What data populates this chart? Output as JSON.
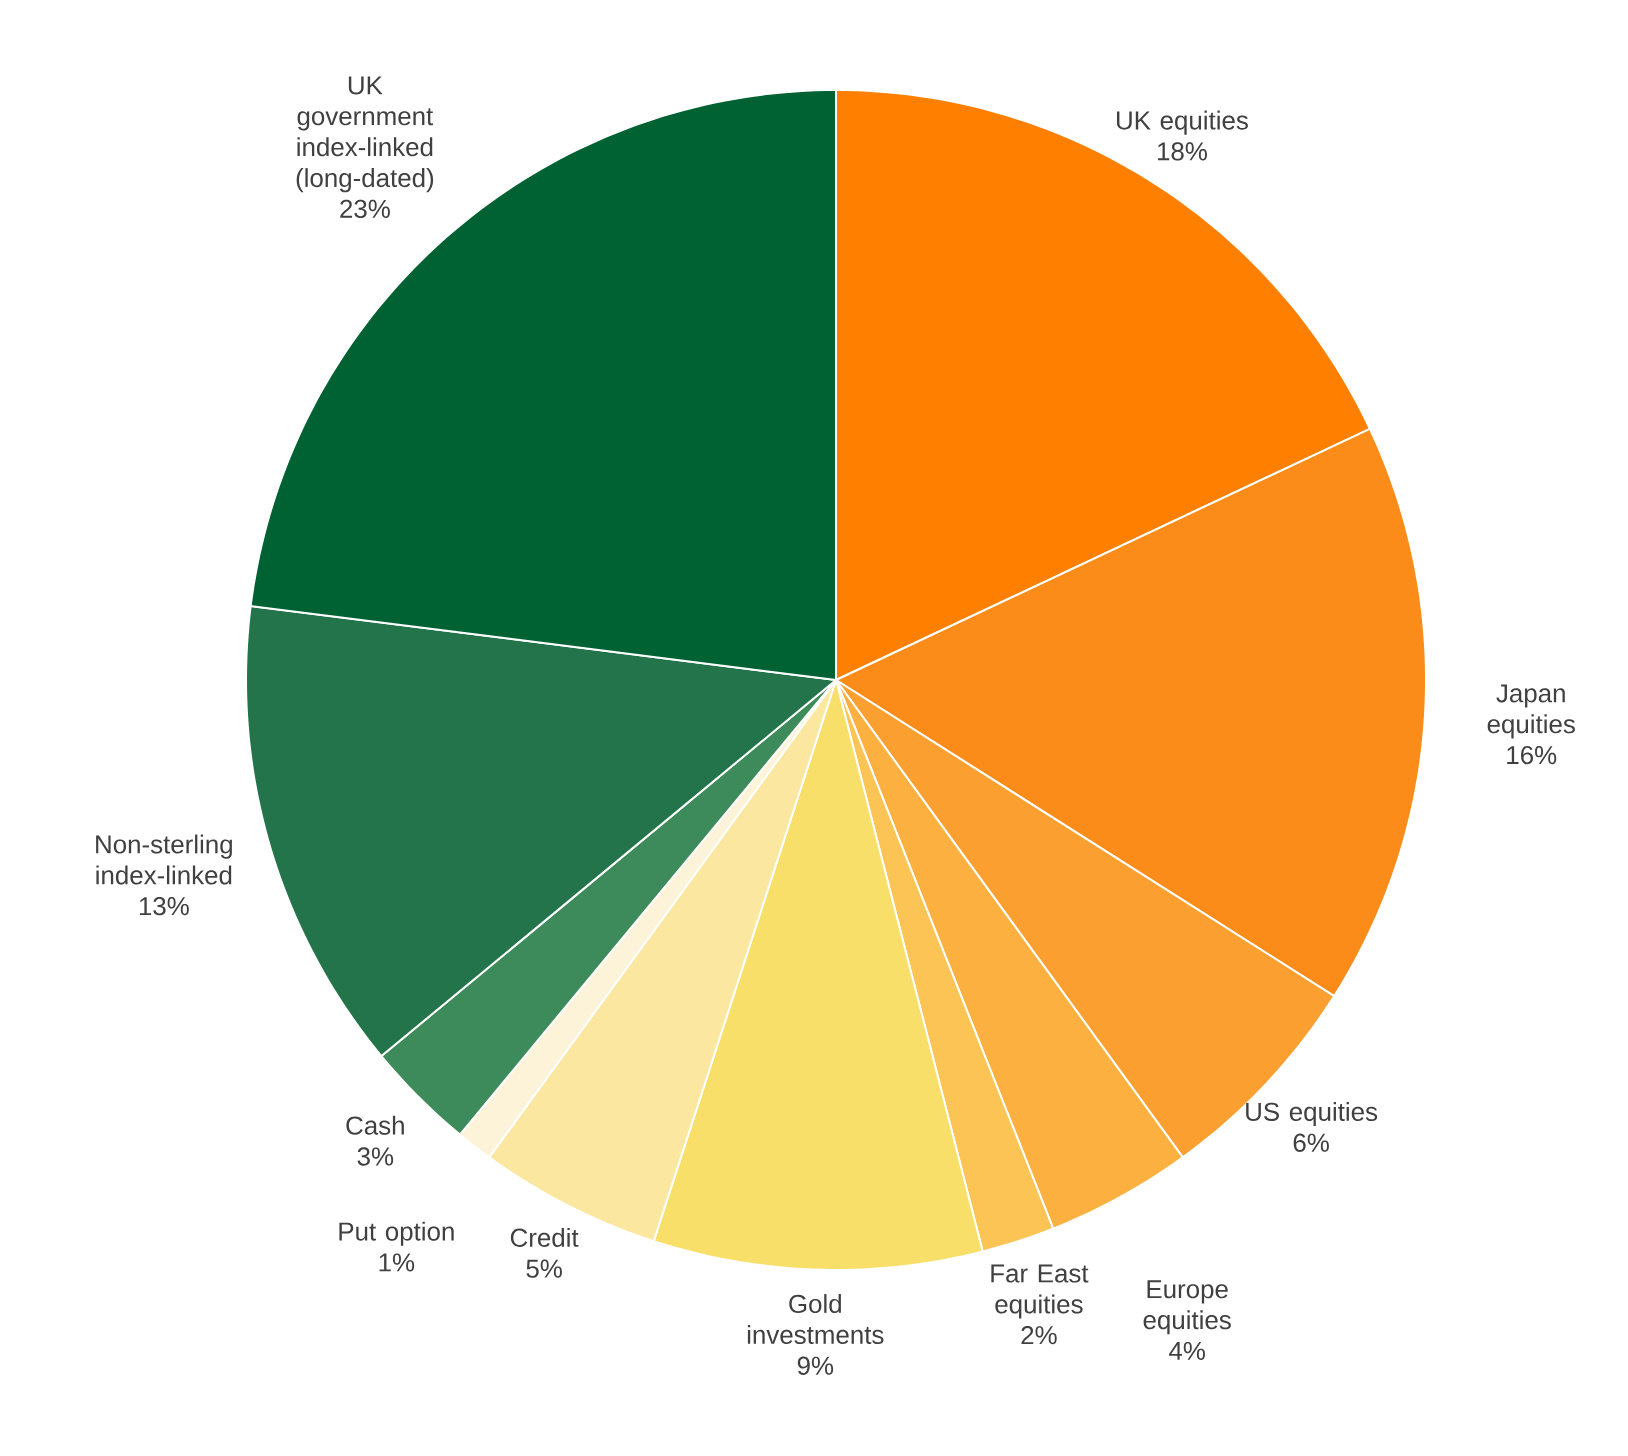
{
  "chart_data": {
    "type": "pie",
    "categories": [
      "UK equities",
      "Japan equities",
      "US equities",
      "Europe equities",
      "Far East equities",
      "Gold investments",
      "Credit",
      "Put option",
      "Cash",
      "Non-sterling index-linked",
      "UK government index-linked (long-dated)"
    ],
    "values": [
      18,
      16,
      6,
      4,
      2,
      9,
      5,
      1,
      3,
      13,
      23
    ],
    "value_labels": [
      "18%",
      "16%",
      "6%",
      "4%",
      "2%",
      "9%",
      "5%",
      "1%",
      "3%",
      "13%",
      "23%"
    ],
    "colors": [
      "#ff7f00",
      "#fb8c1a",
      "#fba030",
      "#fbb040",
      "#fbc455",
      "#f8df6a",
      "#fbe7a0",
      "#fdf3d8",
      "#3d8a5a",
      "#23744a",
      "#006233"
    ]
  }
}
